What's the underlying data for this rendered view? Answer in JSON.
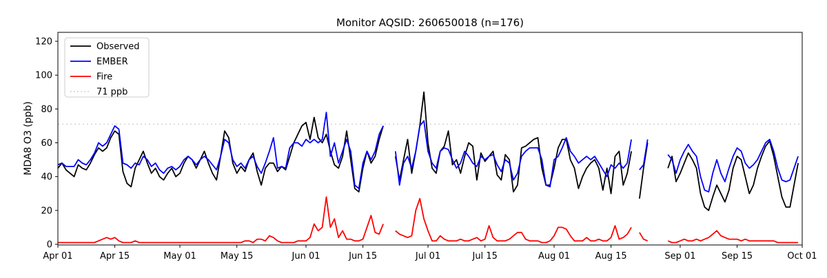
{
  "chart_data": {
    "type": "line",
    "title": "Monitor AQSID: 260650018 (n=176)",
    "ylabel": "MDA8 O3 (ppb)",
    "ylim": [
      0,
      120
    ],
    "yticks": [
      0,
      20,
      40,
      60,
      80,
      100,
      120
    ],
    "x_total_days": 183,
    "xticks": [
      {
        "label": "Apr 01",
        "day": 0
      },
      {
        "label": "Apr 15",
        "day": 14
      },
      {
        "label": "May 01",
        "day": 30
      },
      {
        "label": "May 15",
        "day": 44
      },
      {
        "label": "Jun 01",
        "day": 61
      },
      {
        "label": "Jun 15",
        "day": 75
      },
      {
        "label": "Jul 01",
        "day": 91
      },
      {
        "label": "Jul 15",
        "day": 105
      },
      {
        "label": "Aug 01",
        "day": 122
      },
      {
        "label": "Aug 15",
        "day": 136
      },
      {
        "label": "Sep 01",
        "day": 153
      },
      {
        "label": "Sep 15",
        "day": 167
      },
      {
        "label": "Oct 01",
        "day": 183
      }
    ],
    "grid": false,
    "legend_position": "upper left",
    "threshold": {
      "label": "71 ppb",
      "value": 71,
      "color": "#c8c8c8",
      "style": "dotted"
    },
    "series": [
      {
        "name": "Observed",
        "color": "#000000",
        "values": [
          45,
          48,
          44,
          42,
          40,
          47,
          45,
          44,
          48,
          53,
          57,
          55,
          57,
          63,
          67,
          65,
          43,
          36,
          34,
          45,
          50,
          55,
          48,
          42,
          45,
          40,
          38,
          42,
          45,
          40,
          42,
          48,
          52,
          50,
          45,
          50,
          55,
          48,
          42,
          38,
          52,
          67,
          63,
          48,
          42,
          46,
          43,
          50,
          54,
          43,
          35,
          45,
          48,
          48,
          43,
          46,
          44,
          52,
          60,
          65,
          70,
          72,
          62,
          75,
          63,
          60,
          65,
          55,
          47,
          45,
          52,
          67,
          50,
          33,
          31,
          45,
          55,
          48,
          52,
          62,
          70,
          null,
          null,
          52,
          38,
          50,
          62,
          42,
          55,
          70,
          90,
          60,
          45,
          42,
          55,
          58,
          67,
          47,
          50,
          42,
          52,
          60,
          58,
          38,
          54,
          49,
          52,
          55,
          41,
          38,
          53,
          50,
          31,
          35,
          57,
          58,
          60,
          62,
          63,
          45,
          35,
          35,
          45,
          57,
          62,
          62,
          50,
          45,
          33,
          40,
          45,
          48,
          50,
          45,
          32,
          45,
          30,
          52,
          55,
          35,
          42,
          55,
          null,
          27,
          45,
          60,
          null,
          null,
          null,
          null,
          45,
          52,
          37,
          42,
          48,
          54,
          50,
          45,
          30,
          22,
          20,
          28,
          35,
          30,
          25,
          32,
          45,
          52,
          50,
          40,
          30,
          35,
          45,
          52,
          58,
          61,
          52,
          40,
          28,
          22,
          22,
          35,
          48
        ]
      },
      {
        "name": "EMBER",
        "color": "#0000ff",
        "values": [
          47,
          48,
          46,
          46,
          46,
          50,
          48,
          47,
          50,
          54,
          60,
          58,
          60,
          65,
          70,
          68,
          48,
          47,
          45,
          48,
          47,
          52,
          50,
          46,
          48,
          44,
          42,
          45,
          46,
          44,
          46,
          50,
          52,
          50,
          47,
          50,
          52,
          50,
          47,
          44,
          52,
          62,
          60,
          50,
          46,
          48,
          45,
          50,
          52,
          46,
          42,
          48,
          55,
          63,
          45,
          46,
          45,
          57,
          60,
          60,
          58,
          62,
          60,
          62,
          60,
          62,
          78,
          52,
          60,
          48,
          55,
          62,
          55,
          35,
          33,
          48,
          55,
          50,
          55,
          65,
          70,
          null,
          null,
          55,
          35,
          48,
          52,
          45,
          55,
          70,
          73,
          55,
          48,
          45,
          55,
          57,
          56,
          50,
          45,
          48,
          55,
          52,
          48,
          46,
          52,
          50,
          52,
          53,
          47,
          43,
          50,
          48,
          38,
          42,
          52,
          55,
          57,
          57,
          57,
          50,
          35,
          34,
          50,
          52,
          57,
          63,
          55,
          52,
          48,
          50,
          52,
          50,
          52,
          48,
          44,
          40,
          47,
          45,
          48,
          45,
          48,
          62,
          null,
          44,
          47,
          62,
          null,
          null,
          null,
          null,
          53,
          50,
          42,
          50,
          55,
          59,
          55,
          52,
          40,
          32,
          31,
          42,
          50,
          42,
          37,
          45,
          52,
          57,
          55,
          48,
          45,
          47,
          50,
          55,
          60,
          62,
          55,
          45,
          38,
          37,
          38,
          45,
          52
        ]
      },
      {
        "name": "Fire",
        "color": "#ff0000",
        "values": [
          1,
          1,
          1,
          1,
          1,
          1,
          1,
          1,
          1,
          1,
          2,
          3,
          4,
          3,
          4,
          2,
          1,
          1,
          1,
          2,
          1,
          1,
          1,
          1,
          1,
          1,
          1,
          1,
          1,
          1,
          1,
          1,
          1,
          1,
          1,
          1,
          1,
          1,
          1,
          1,
          1,
          1,
          1,
          1,
          1,
          1,
          2,
          2,
          1,
          3,
          3,
          2,
          5,
          4,
          2,
          1,
          1,
          1,
          1,
          2,
          2,
          2,
          4,
          12,
          8,
          10,
          28,
          10,
          15,
          4,
          8,
          3,
          3,
          2,
          2,
          3,
          10,
          17,
          7,
          6,
          12,
          null,
          null,
          8,
          6,
          5,
          4,
          5,
          20,
          27,
          15,
          8,
          2,
          2,
          5,
          3,
          2,
          2,
          2,
          3,
          2,
          2,
          3,
          4,
          2,
          3,
          11,
          4,
          2,
          2,
          2,
          3,
          5,
          7,
          7,
          3,
          2,
          2,
          2,
          1,
          1,
          2,
          5,
          10,
          10,
          9,
          5,
          2,
          2,
          2,
          4,
          2,
          2,
          3,
          2,
          2,
          4,
          11,
          3,
          4,
          6,
          10,
          null,
          7,
          3,
          2,
          null,
          null,
          null,
          null,
          2,
          1,
          1,
          2,
          3,
          2,
          2,
          3,
          2,
          3,
          4,
          6,
          8,
          5,
          4,
          3,
          3,
          3,
          2,
          3,
          2,
          2,
          2,
          2,
          2,
          2,
          2,
          1,
          1,
          1,
          1,
          1,
          1
        ]
      }
    ]
  }
}
